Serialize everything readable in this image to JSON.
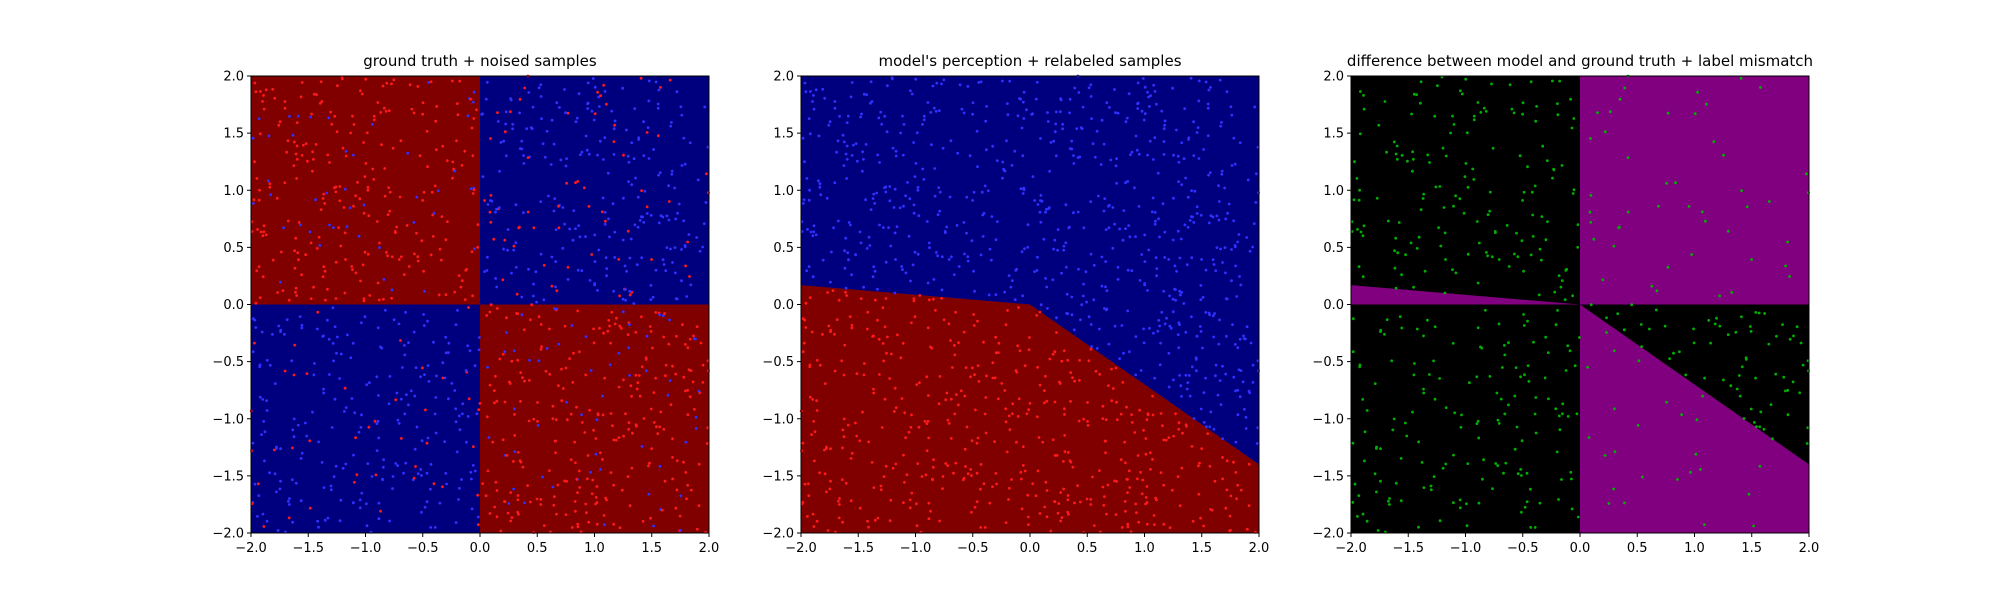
{
  "chart_data": [
    {
      "type": "scatter",
      "title": "ground truth + noised samples",
      "xlim": [
        -2.0,
        2.0
      ],
      "ylim": [
        -2.0,
        2.0
      ],
      "xticks": [
        "−2.0",
        "−1.5",
        "−1.0",
        "−0.5",
        "0.0",
        "0.5",
        "1.0",
        "1.5",
        "2.0"
      ],
      "yticks": [
        "−2.0",
        "−1.5",
        "−1.0",
        "−0.5",
        "0.0",
        "0.5",
        "1.0",
        "1.5",
        "2.0"
      ],
      "background_regions": [
        {
          "polygon": [
            [
              -2,
              0
            ],
            [
              0,
              0
            ],
            [
              0,
              2
            ],
            [
              -2,
              2
            ]
          ],
          "color": "#800000"
        },
        {
          "polygon": [
            [
              0,
              0
            ],
            [
              2,
              0
            ],
            [
              2,
              2
            ],
            [
              0,
              2
            ]
          ],
          "color": "#00007f"
        },
        {
          "polygon": [
            [
              -2,
              -2
            ],
            [
              0,
              -2
            ],
            [
              0,
              0
            ],
            [
              -2,
              0
            ]
          ],
          "color": "#00007f"
        },
        {
          "polygon": [
            [
              0,
              -2
            ],
            [
              2,
              -2
            ],
            [
              2,
              0
            ],
            [
              0,
              0
            ]
          ],
          "color": "#800000"
        }
      ],
      "point_colors": {
        "red": "#ff1a1a",
        "blue": "#3030ff"
      },
      "point_rule": "noisy_xor",
      "n_points": 1200,
      "noise_fraction": 0.18,
      "grid": false,
      "legend": "none"
    },
    {
      "type": "scatter",
      "title": "model's perception + relabeled samples",
      "xlim": [
        -2.0,
        2.0
      ],
      "ylim": [
        -2.0,
        2.0
      ],
      "xticks": [
        "−2.0",
        "−1.5",
        "−1.0",
        "−0.5",
        "0.0",
        "0.5",
        "1.0",
        "1.5",
        "2.0"
      ],
      "yticks": [
        "−2.0",
        "−1.5",
        "−1.0",
        "−0.5",
        "0.0",
        "0.5",
        "1.0",
        "1.5",
        "2.0"
      ],
      "background_regions": [
        {
          "polygon": [
            [
              -2,
              -2
            ],
            [
              2,
              -2
            ],
            [
              2,
              2
            ],
            [
              -2,
              2
            ]
          ],
          "color": "#00007f"
        },
        {
          "polygon": [
            [
              -2,
              -2
            ],
            [
              2,
              -2
            ],
            [
              2,
              -1.4
            ],
            [
              0,
              0
            ],
            [
              -2,
              0.17
            ]
          ],
          "color": "#800000"
        }
      ],
      "point_colors": {
        "red": "#ff1a1a",
        "blue": "#3030ff"
      },
      "point_rule": "model_boundary",
      "n_points": 1200,
      "grid": false,
      "legend": "none"
    },
    {
      "type": "scatter",
      "title": "difference between model and ground truth + label mismatch",
      "xlim": [
        -2.0,
        2.0
      ],
      "ylim": [
        -2.0,
        2.0
      ],
      "xticks": [
        "−2.0",
        "−1.5",
        "−1.0",
        "−0.5",
        "0.0",
        "0.5",
        "1.0",
        "1.5",
        "2.0"
      ],
      "yticks": [
        "−2.0",
        "−1.5",
        "−1.0",
        "−0.5",
        "0.0",
        "0.5",
        "1.0",
        "1.5",
        "2.0"
      ],
      "background_regions": [
        {
          "polygon": [
            [
              -2,
              -2
            ],
            [
              2,
              -2
            ],
            [
              2,
              2
            ],
            [
              -2,
              2
            ]
          ],
          "color": "#000000"
        },
        {
          "polygon": [
            [
              0,
              0
            ],
            [
              2,
              0
            ],
            [
              2,
              2
            ],
            [
              0,
              2
            ]
          ],
          "color": "#800080"
        },
        {
          "polygon": [
            [
              -2,
              0
            ],
            [
              0,
              0
            ],
            [
              -2,
              0.17
            ]
          ],
          "color": "#800080"
        },
        {
          "polygon": [
            [
              0,
              0
            ],
            [
              2,
              -1.4
            ],
            [
              2,
              -2
            ],
            [
              0,
              -2
            ]
          ],
          "color": "#800080"
        }
      ],
      "point_colors": {
        "mismatch": "#00b000"
      },
      "point_rule": "label_mismatch",
      "n_points": 1200,
      "grid": false,
      "legend": "none"
    }
  ]
}
